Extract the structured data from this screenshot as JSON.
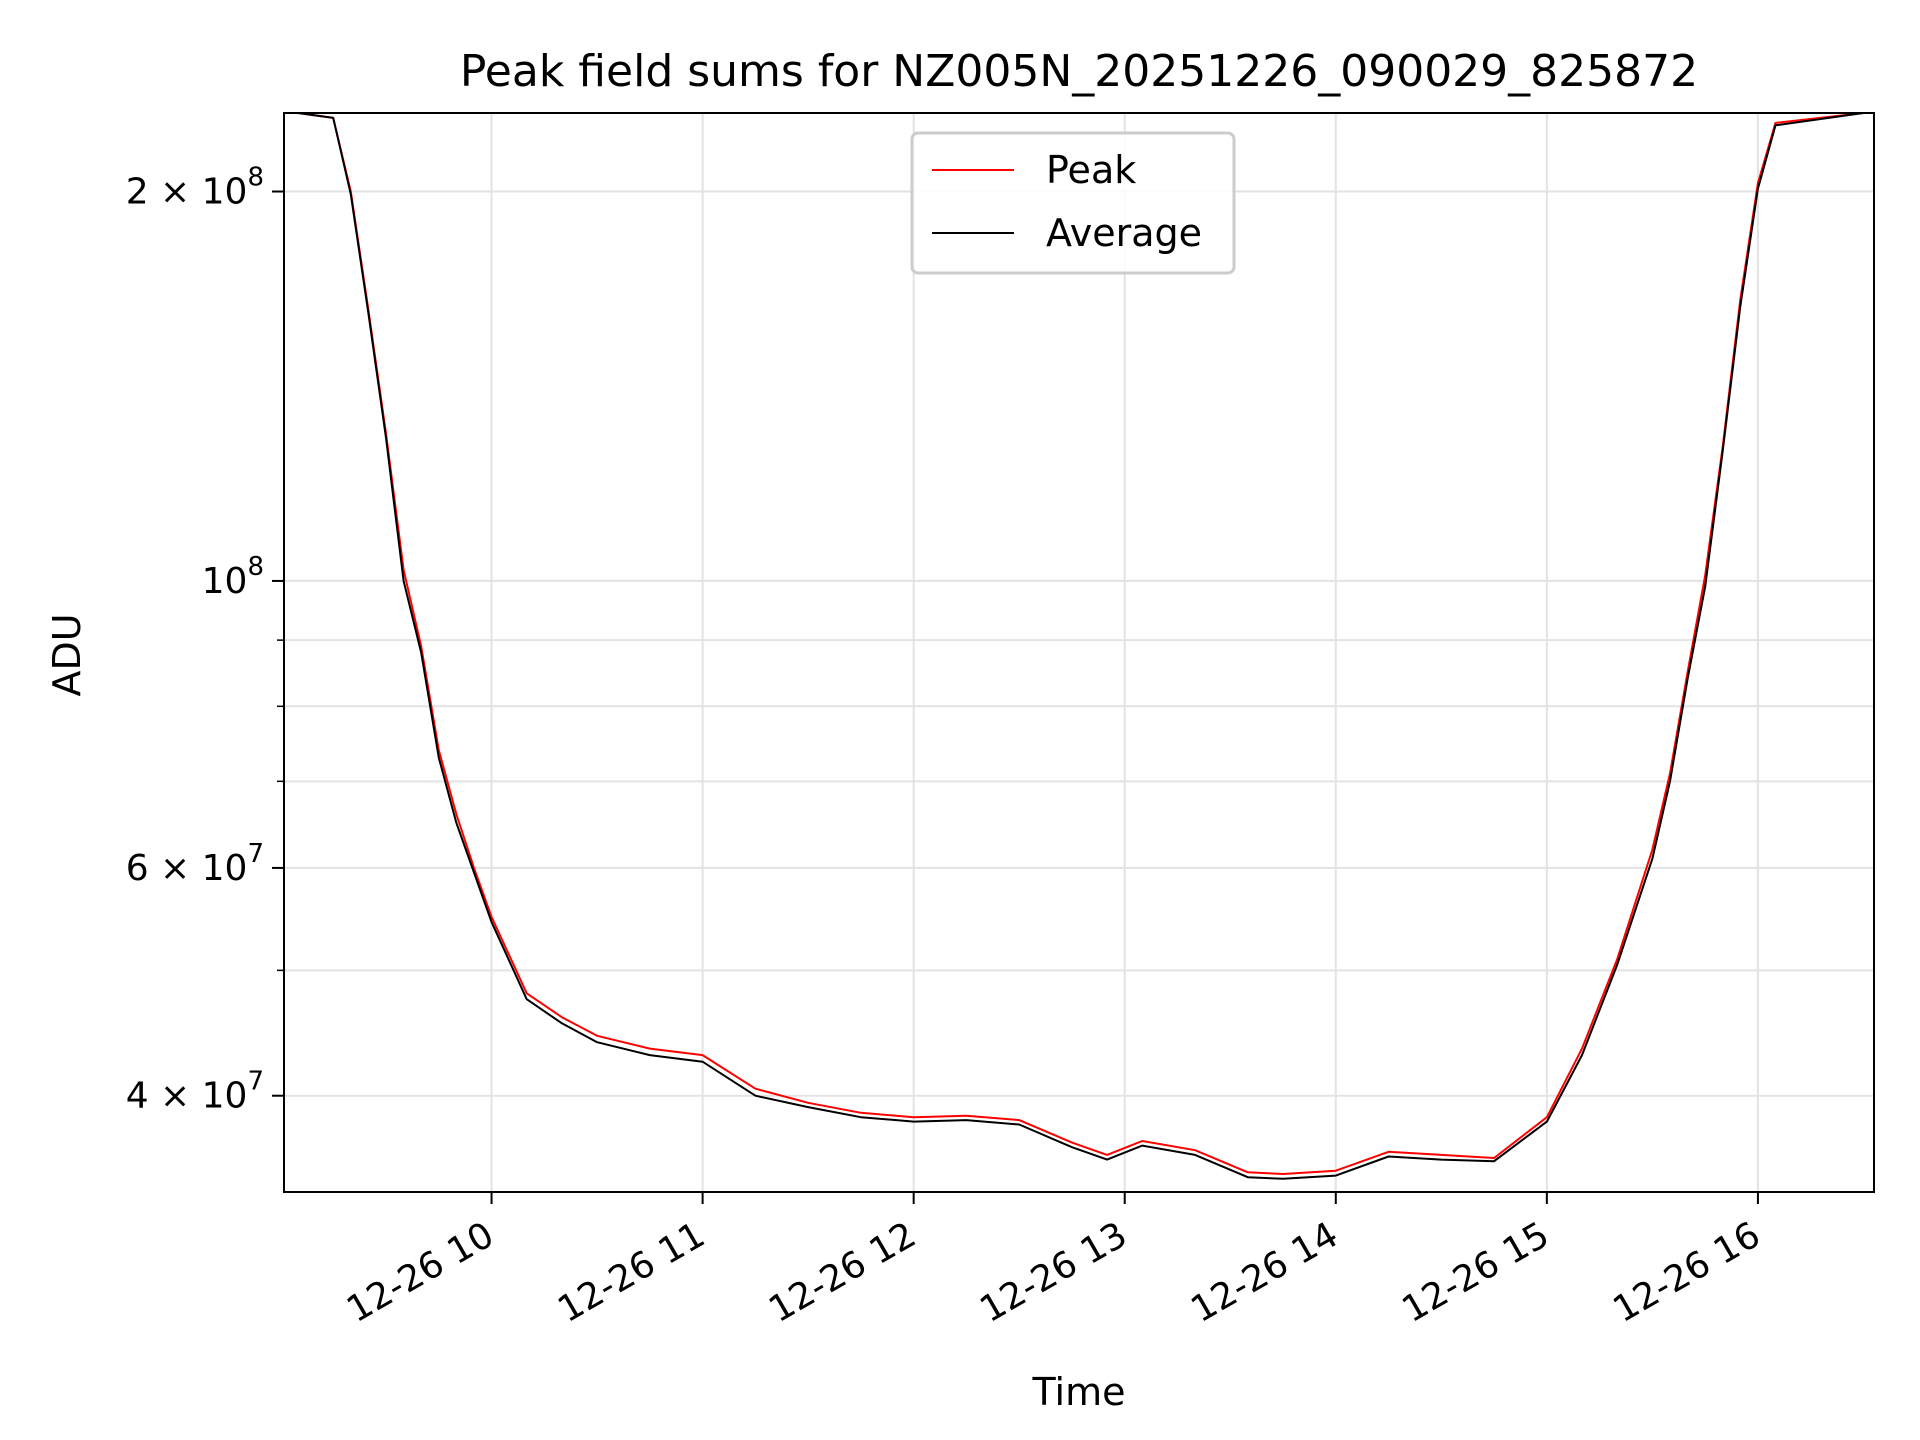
{
  "chart_data": {
    "type": "line",
    "title": "Peak field sums for NZ005N_20251226_090029_825872",
    "xlabel": "Time",
    "ylabel": "ADU",
    "y_scale": "log",
    "grid": true,
    "legend_position": "top-center",
    "xlim": [
      "2025-12-26 09:01",
      "2025-12-26 16:33"
    ],
    "ylim": [
      33700000,
      230000000
    ],
    "x_ticks": [
      {
        "value": "2025-12-26 10:00",
        "label": "12-26 10"
      },
      {
        "value": "2025-12-26 11:00",
        "label": "12-26 11"
      },
      {
        "value": "2025-12-26 12:00",
        "label": "12-26 12"
      },
      {
        "value": "2025-12-26 13:00",
        "label": "12-26 13"
      },
      {
        "value": "2025-12-26 14:00",
        "label": "12-26 14"
      },
      {
        "value": "2025-12-26 15:00",
        "label": "12-26 15"
      },
      {
        "value": "2025-12-26 16:00",
        "label": "12-26 16"
      }
    ],
    "y_ticks": [
      {
        "value": 40000000,
        "base": "4 × 10",
        "exp": "7"
      },
      {
        "value": 60000000,
        "base": "6 × 10",
        "exp": "7"
      },
      {
        "value": 100000000,
        "base": "10",
        "exp": "8"
      },
      {
        "value": 200000000,
        "base": "2 × 10",
        "exp": "8"
      }
    ],
    "y_minor_ticks": [
      30000000,
      50000000,
      70000000,
      80000000,
      90000000
    ],
    "series": [
      {
        "name": "Peak",
        "color": "#ff0000",
        "x": [
          "2025-12-26 09:05",
          "2025-12-26 09:15",
          "2025-12-26 09:20",
          "2025-12-26 09:25",
          "2025-12-26 09:30",
          "2025-12-26 09:35",
          "2025-12-26 09:40",
          "2025-12-26 09:45",
          "2025-12-26 09:50",
          "2025-12-26 09:55",
          "2025-12-26 10:00",
          "2025-12-26 10:10",
          "2025-12-26 10:20",
          "2025-12-26 10:30",
          "2025-12-26 10:45",
          "2025-12-26 11:00",
          "2025-12-26 11:15",
          "2025-12-26 11:30",
          "2025-12-26 11:45",
          "2025-12-26 12:00",
          "2025-12-26 12:15",
          "2025-12-26 12:30",
          "2025-12-26 12:45",
          "2025-12-26 12:55",
          "2025-12-26 13:05",
          "2025-12-26 13:20",
          "2025-12-26 13:35",
          "2025-12-26 13:45",
          "2025-12-26 14:00",
          "2025-12-26 14:15",
          "2025-12-26 14:30",
          "2025-12-26 14:45",
          "2025-12-26 15:00",
          "2025-12-26 15:10",
          "2025-12-26 15:20",
          "2025-12-26 15:30",
          "2025-12-26 15:35",
          "2025-12-26 15:40",
          "2025-12-26 15:45",
          "2025-12-26 15:50",
          "2025-12-26 15:55",
          "2025-12-26 16:00",
          "2025-12-26 16:05",
          "2025-12-26 16:30"
        ],
        "values": [
          230000000,
          228000000,
          200000000,
          162000000,
          130000000,
          102000000,
          89000000,
          74000000,
          66000000,
          60000000,
          55000000,
          48000000,
          46000000,
          44500000,
          43500000,
          43000000,
          40500000,
          39500000,
          38800000,
          38500000,
          38600000,
          38300000,
          36800000,
          36000000,
          36900000,
          36300000,
          34900000,
          34800000,
          35000000,
          36200000,
          36000000,
          35800000,
          38500000,
          43500000,
          51000000,
          62000000,
          71000000,
          85000000,
          101000000,
          127000000,
          165000000,
          203000000,
          226000000,
          230000000
        ]
      },
      {
        "name": "Average",
        "color": "#000000",
        "x": [
          "2025-12-26 09:05",
          "2025-12-26 09:15",
          "2025-12-26 09:20",
          "2025-12-26 09:25",
          "2025-12-26 09:30",
          "2025-12-26 09:35",
          "2025-12-26 09:40",
          "2025-12-26 09:45",
          "2025-12-26 09:50",
          "2025-12-26 09:55",
          "2025-12-26 10:00",
          "2025-12-26 10:10",
          "2025-12-26 10:20",
          "2025-12-26 10:30",
          "2025-12-26 10:45",
          "2025-12-26 11:00",
          "2025-12-26 11:15",
          "2025-12-26 11:30",
          "2025-12-26 11:45",
          "2025-12-26 12:00",
          "2025-12-26 12:15",
          "2025-12-26 12:30",
          "2025-12-26 12:45",
          "2025-12-26 12:55",
          "2025-12-26 13:05",
          "2025-12-26 13:20",
          "2025-12-26 13:35",
          "2025-12-26 13:45",
          "2025-12-26 14:00",
          "2025-12-26 14:15",
          "2025-12-26 14:30",
          "2025-12-26 14:45",
          "2025-12-26 15:00",
          "2025-12-26 15:10",
          "2025-12-26 15:20",
          "2025-12-26 15:30",
          "2025-12-26 15:35",
          "2025-12-26 15:40",
          "2025-12-26 15:45",
          "2025-12-26 15:50",
          "2025-12-26 15:55",
          "2025-12-26 16:00",
          "2025-12-26 16:05",
          "2025-12-26 16:30"
        ],
        "values": [
          230000000,
          228000000,
          199000000,
          161000000,
          129000000,
          100000000,
          88000000,
          73000000,
          65000000,
          59500000,
          54500000,
          47500000,
          45500000,
          44000000,
          43000000,
          42500000,
          40000000,
          39200000,
          38500000,
          38200000,
          38300000,
          38000000,
          36500000,
          35700000,
          36600000,
          36000000,
          34600000,
          34500000,
          34700000,
          35900000,
          35700000,
          35600000,
          38200000,
          43000000,
          50500000,
          61000000,
          70000000,
          84000000,
          99000000,
          126000000,
          163000000,
          201000000,
          225000000,
          230000000
        ]
      }
    ]
  }
}
